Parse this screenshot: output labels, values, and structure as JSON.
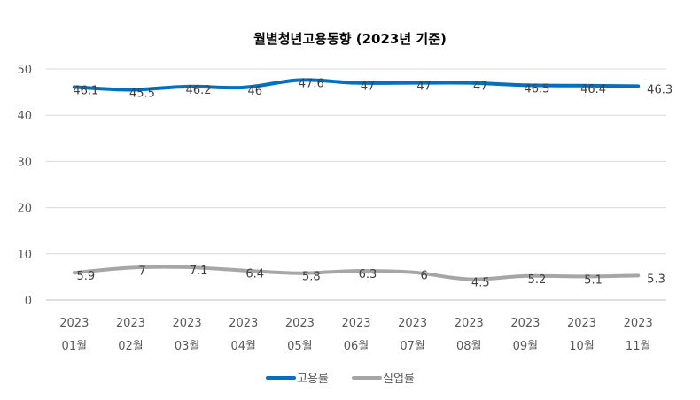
{
  "chart_data": {
    "type": "line",
    "title": "월별청년고용동향 (2023년 기준)",
    "xlabel": "",
    "ylabel": "",
    "ylim": [
      0,
      50
    ],
    "yticks": [
      0,
      10,
      20,
      30,
      40,
      50
    ],
    "grid": true,
    "legend": "bottom-center",
    "categories": [
      [
        "2023",
        "01월"
      ],
      [
        "2023",
        "02월"
      ],
      [
        "2023",
        "03월"
      ],
      [
        "2023",
        "04월"
      ],
      [
        "2023",
        "05월"
      ],
      [
        "2023",
        "06월"
      ],
      [
        "2023",
        "07월"
      ],
      [
        "2023",
        "08월"
      ],
      [
        "2023",
        "09월"
      ],
      [
        "2023",
        "10월"
      ],
      [
        "2023",
        "11월"
      ]
    ],
    "series": [
      {
        "name": "고용률",
        "color": "#0070C0",
        "values": [
          46.1,
          45.5,
          46.2,
          46,
          47.6,
          47,
          47,
          47,
          46.5,
          46.4,
          46.3
        ]
      },
      {
        "name": "실업률",
        "color": "#A6A6A6",
        "values": [
          5.9,
          7,
          7.1,
          6.4,
          5.8,
          6.3,
          6,
          4.5,
          5.2,
          5.1,
          5.3
        ]
      }
    ]
  }
}
